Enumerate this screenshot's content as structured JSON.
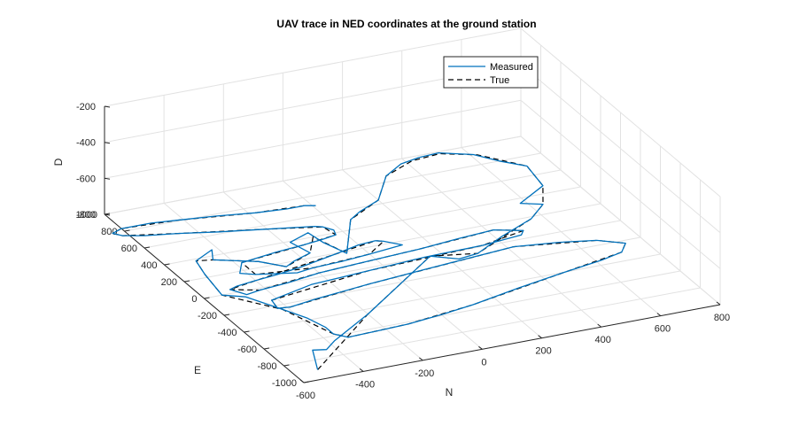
{
  "chart_data": {
    "type": "line",
    "title": "UAV trace in NED coordinates at the ground station",
    "xlabel": "N",
    "ylabel": "E",
    "zlabel": "D",
    "xlim": [
      -600,
      800
    ],
    "ylim": [
      -1000,
      1000
    ],
    "zlim": [
      -800,
      -200
    ],
    "xticks": [
      "-600",
      "-400",
      "-200",
      "0",
      "200",
      "400",
      "600",
      "800"
    ],
    "yticks": [
      "1000",
      "800",
      "600",
      "400",
      "200",
      "0",
      "-200",
      "-400",
      "-600",
      "-800",
      "-1000"
    ],
    "zticks": [
      "-200",
      "-400",
      "-600",
      "-800"
    ],
    "grid": true,
    "legend": "top-right",
    "series": [
      {
        "name": "Measured",
        "color": "#0072bd",
        "points": [
          [
            -520,
            -900
          ],
          [
            -470,
            -700
          ],
          [
            -430,
            -720
          ],
          [
            -380,
            -650
          ],
          [
            -200,
            -450
          ],
          [
            0,
            -200
          ],
          [
            160,
            0
          ],
          [
            230,
            -80
          ],
          [
            300,
            -60
          ],
          [
            420,
            60
          ],
          [
            560,
            180
          ],
          [
            640,
            300
          ],
          [
            580,
            350
          ],
          [
            700,
            480
          ],
          [
            720,
            700
          ],
          [
            660,
            800
          ],
          [
            610,
            910
          ],
          [
            520,
            990
          ],
          [
            450,
            980
          ],
          [
            380,
            950
          ],
          [
            300,
            860
          ],
          [
            200,
            640
          ],
          [
            110,
            560
          ],
          [
            60,
            500
          ],
          [
            -60,
            180
          ],
          [
            -90,
            330
          ],
          [
            -100,
            450
          ],
          [
            -180,
            390
          ],
          [
            -160,
            250
          ],
          [
            -230,
            200
          ],
          [
            -270,
            160
          ],
          [
            -330,
            260
          ],
          [
            -450,
            360
          ],
          [
            -420,
            460
          ],
          [
            -500,
            380
          ],
          [
            -520,
            230
          ],
          [
            -540,
            0
          ],
          [
            -480,
            -60
          ],
          [
            -420,
            -250
          ],
          [
            -380,
            -380
          ],
          [
            -360,
            -500
          ],
          [
            -360,
            -580
          ],
          [
            -330,
            -640
          ],
          [
            -220,
            -630
          ],
          [
            -120,
            -620
          ],
          [
            0,
            -590
          ],
          [
            120,
            -550
          ],
          [
            300,
            -470
          ],
          [
            480,
            -400
          ],
          [
            620,
            -350
          ],
          [
            700,
            -310
          ],
          [
            740,
            -230
          ],
          [
            670,
            -150
          ],
          [
            560,
            -100
          ],
          [
            420,
            -60
          ],
          [
            100,
            -120
          ],
          [
            -100,
            -160
          ],
          [
            -300,
            -210
          ],
          [
            -390,
            -240
          ],
          [
            -430,
            -230
          ],
          [
            -420,
            -140
          ],
          [
            -260,
            -60
          ],
          [
            -60,
            -30
          ],
          [
            140,
            0
          ],
          [
            340,
            10
          ],
          [
            480,
            40
          ],
          [
            500,
            80
          ],
          [
            420,
            140
          ],
          [
            300,
            120
          ],
          [
            160,
            90
          ],
          [
            -60,
            60
          ],
          [
            -200,
            40
          ],
          [
            -320,
            0
          ],
          [
            -420,
            -20
          ],
          [
            -470,
            -40
          ],
          [
            -500,
            40
          ],
          [
            -470,
            60
          ],
          [
            -400,
            80
          ],
          [
            -320,
            100
          ],
          [
            -230,
            130
          ],
          [
            -100,
            190
          ],
          [
            0,
            240
          ],
          [
            60,
            250
          ],
          [
            80,
            230
          ],
          [
            120,
            160
          ],
          [
            0,
            130
          ],
          [
            -100,
            110
          ],
          [
            -200,
            100
          ],
          [
            -260,
            80
          ],
          [
            -380,
            140
          ],
          [
            -420,
            180
          ],
          [
            -380,
            280
          ],
          [
            -250,
            320
          ],
          [
            -150,
            340
          ],
          [
            -80,
            360
          ],
          [
            -30,
            380
          ],
          [
            -20,
            430
          ],
          [
            -40,
            480
          ],
          [
            -60,
            500
          ],
          [
            -200,
            560
          ],
          [
            -340,
            620
          ],
          [
            -460,
            680
          ],
          [
            -560,
            720
          ],
          [
            -620,
            760
          ],
          [
            -640,
            800
          ],
          [
            -600,
            830
          ],
          [
            -500,
            830
          ],
          [
            -420,
            810
          ],
          [
            -300,
            780
          ],
          [
            -180,
            740
          ],
          [
            -80,
            720
          ],
          [
            -20,
            720
          ],
          [
            10,
            700
          ]
        ]
      },
      {
        "name": "True",
        "color": "#000000",
        "points": [
          [
            -520,
            -900
          ],
          [
            -200,
            -450
          ],
          [
            160,
            0
          ],
          [
            300,
            -60
          ],
          [
            560,
            180
          ],
          [
            640,
            300
          ],
          [
            700,
            480
          ],
          [
            720,
            700
          ],
          [
            620,
            900
          ],
          [
            520,
            980
          ],
          [
            420,
            960
          ],
          [
            300,
            860
          ],
          [
            200,
            640
          ],
          [
            60,
            500
          ],
          [
            -60,
            180
          ],
          [
            -100,
            400
          ],
          [
            -160,
            250
          ],
          [
            -270,
            160
          ],
          [
            -330,
            260
          ],
          [
            -450,
            360
          ],
          [
            -500,
            380
          ],
          [
            -520,
            230
          ],
          [
            -540,
            0
          ],
          [
            -420,
            -250
          ],
          [
            -360,
            -580
          ],
          [
            -330,
            -640
          ],
          [
            -120,
            -620
          ],
          [
            120,
            -550
          ],
          [
            480,
            -400
          ],
          [
            700,
            -310
          ],
          [
            740,
            -230
          ],
          [
            670,
            -150
          ],
          [
            420,
            -60
          ],
          [
            -100,
            -160
          ],
          [
            -390,
            -240
          ],
          [
            -430,
            -230
          ],
          [
            -420,
            -140
          ],
          [
            -60,
            -30
          ],
          [
            340,
            10
          ],
          [
            500,
            80
          ],
          [
            420,
            140
          ],
          [
            160,
            90
          ],
          [
            -200,
            40
          ],
          [
            -420,
            -20
          ],
          [
            -500,
            40
          ],
          [
            -400,
            80
          ],
          [
            -100,
            190
          ],
          [
            60,
            250
          ],
          [
            80,
            230
          ],
          [
            0,
            130
          ],
          [
            -200,
            100
          ],
          [
            -380,
            140
          ],
          [
            -380,
            280
          ],
          [
            -150,
            340
          ],
          [
            -30,
            380
          ],
          [
            -40,
            480
          ],
          [
            -200,
            560
          ],
          [
            -460,
            680
          ],
          [
            -620,
            760
          ],
          [
            -640,
            800
          ],
          [
            -600,
            830
          ],
          [
            -420,
            810
          ],
          [
            -180,
            740
          ],
          [
            -20,
            720
          ]
        ]
      }
    ]
  }
}
